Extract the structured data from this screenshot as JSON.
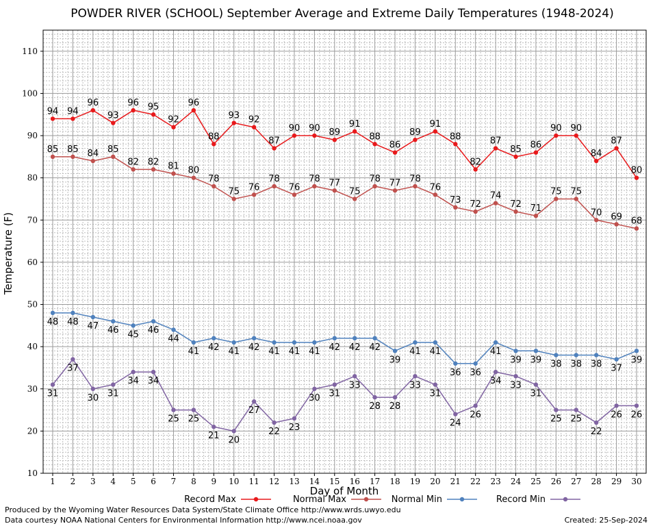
{
  "chart_data": {
    "type": "line",
    "title": "POWDER RIVER (SCHOOL) September Average and Extreme Daily Temperatures (1948-2024)",
    "xlabel": "Day of Month",
    "ylabel": "Temperature (F)",
    "xlim": [
      1,
      30
    ],
    "ylim": [
      10,
      115
    ],
    "yticks": [
      10,
      20,
      30,
      40,
      50,
      60,
      70,
      80,
      90,
      100,
      110
    ],
    "x": [
      1,
      2,
      3,
      4,
      5,
      6,
      7,
      8,
      9,
      10,
      11,
      12,
      13,
      14,
      15,
      16,
      17,
      18,
      19,
      20,
      21,
      22,
      23,
      24,
      25,
      26,
      27,
      28,
      29,
      30
    ],
    "grid": true,
    "legend_position": "bottom",
    "series": [
      {
        "name": "Record Max",
        "color": "#e8191b",
        "label_pos": "above",
        "values": [
          94,
          94,
          96,
          93,
          96,
          95,
          92,
          96,
          88,
          93,
          92,
          87,
          90,
          90,
          89,
          91,
          88,
          86,
          89,
          91,
          88,
          82,
          87,
          85,
          86,
          90,
          90,
          84,
          87,
          80
        ]
      },
      {
        "name": "Normal Max",
        "color": "#c0504d",
        "label_pos": "above",
        "values": [
          85,
          85,
          84,
          85,
          82,
          82,
          81,
          80,
          78,
          75,
          76,
          78,
          76,
          78,
          77,
          75,
          78,
          77,
          78,
          76,
          73,
          72,
          74,
          72,
          71,
          75,
          75,
          70,
          69,
          68
        ]
      },
      {
        "name": "Normal Min",
        "color": "#4f81bd",
        "label_pos": "below",
        "values": [
          48,
          48,
          47,
          46,
          45,
          46,
          44,
          41,
          42,
          41,
          42,
          41,
          41,
          41,
          42,
          42,
          42,
          39,
          41,
          41,
          36,
          36,
          41,
          39,
          39,
          38,
          38,
          38,
          37,
          39
        ]
      },
      {
        "name": "Record Min",
        "color": "#8064a2",
        "label_pos": "below",
        "values": [
          31,
          37,
          30,
          31,
          34,
          34,
          25,
          25,
          21,
          20,
          27,
          22,
          23,
          30,
          31,
          33,
          28,
          28,
          33,
          31,
          24,
          26,
          34,
          33,
          31,
          25,
          25,
          22,
          26,
          26
        ]
      }
    ]
  },
  "footer": {
    "credit_1": "Produced by the Wyoming Water Resources Data System/State Climate Office http://www.wrds.uwyo.edu",
    "credit_2": "Data courtesy NOAA National Centers for Environmental Information http://www.ncei.noaa.gov",
    "created": "Created:  25-Sep-2024"
  }
}
